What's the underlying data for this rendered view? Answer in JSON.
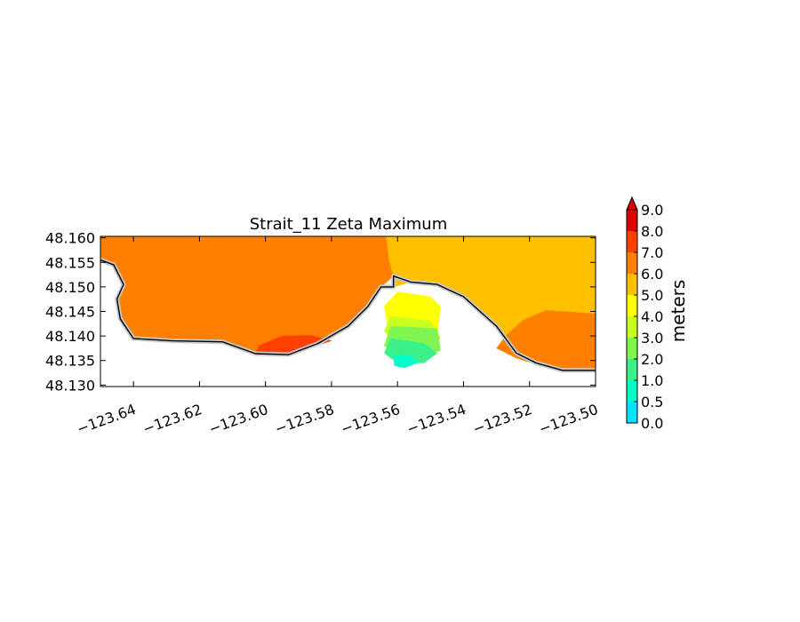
{
  "chart_data": {
    "type": "heatmap",
    "title": "Strait_11 Zeta Maximum",
    "xlabel": "",
    "ylabel": "",
    "xlim": [
      -123.65,
      -123.5
    ],
    "ylim": [
      48.1297,
      48.1603
    ],
    "x_ticks": [
      -123.64,
      -123.62,
      -123.6,
      -123.58,
      -123.56,
      -123.54,
      -123.52,
      -123.5
    ],
    "x_tick_labels": [
      "−123.64",
      "−123.62",
      "−123.60",
      "−123.58",
      "−123.56",
      "−123.54",
      "−123.52",
      "−123.50"
    ],
    "y_ticks": [
      48.13,
      48.135,
      48.14,
      48.145,
      48.15,
      48.155,
      48.16
    ],
    "y_tick_labels": [
      "48.130",
      "48.135",
      "48.140",
      "48.145",
      "48.150",
      "48.155",
      "48.160"
    ],
    "colorbar": {
      "label": "meters",
      "levels": [
        0.0,
        0.5,
        1.0,
        2.0,
        3.0,
        4.0,
        5.0,
        6.0,
        7.0,
        8.0,
        9.0
      ],
      "level_labels": [
        "0.0",
        "0.5",
        "1.0",
        "2.0",
        "3.0",
        "4.0",
        "5.0",
        "6.0",
        "7.0",
        "8.0",
        "9.0"
      ],
      "colors": [
        "#00e5ff",
        "#00ffc8",
        "#3cf08a",
        "#80f550",
        "#c8ff20",
        "#ffff00",
        "#ffc000",
        "#ff8000",
        "#ff4000",
        "#e00000"
      ],
      "extend": "max",
      "extend_color": "#e00000"
    },
    "regions": [
      {
        "name": "west-basin",
        "value_range": [
          6.0,
          7.0
        ],
        "color": "#ff8000",
        "polygon": [
          [
            -123.65,
            48.1603
          ],
          [
            -123.5634,
            48.1603
          ],
          [
            -123.5625,
            48.1555
          ],
          [
            -123.5612,
            48.1522
          ],
          [
            -123.565,
            48.15
          ],
          [
            -123.569,
            48.146
          ],
          [
            -123.575,
            48.142
          ],
          [
            -123.584,
            48.1385
          ],
          [
            -123.593,
            48.1362
          ],
          [
            -123.603,
            48.1364
          ],
          [
            -123.613,
            48.1388
          ],
          [
            -123.628,
            48.139
          ],
          [
            -123.64,
            48.1395
          ],
          [
            -123.644,
            48.1435
          ],
          [
            -123.645,
            48.1475
          ],
          [
            -123.643,
            48.1505
          ],
          [
            -123.646,
            48.1545
          ],
          [
            -123.65,
            48.1555
          ]
        ]
      },
      {
        "name": "east-basin",
        "value_range": [
          5.0,
          6.0
        ],
        "color": "#ffc000",
        "polygon": [
          [
            -123.5634,
            48.1603
          ],
          [
            -123.5,
            48.1603
          ],
          [
            -123.5,
            48.133
          ],
          [
            -123.51,
            48.133
          ],
          [
            -123.518,
            48.1345
          ],
          [
            -123.524,
            48.1365
          ],
          [
            -123.53,
            48.142
          ],
          [
            -123.54,
            48.148
          ],
          [
            -123.548,
            48.1505
          ],
          [
            -123.556,
            48.151
          ],
          [
            -123.5612,
            48.15
          ],
          [
            -123.5612,
            48.1522
          ],
          [
            -123.5625,
            48.1555
          ]
        ]
      },
      {
        "name": "east-shore-band",
        "value_range": [
          6.0,
          7.0
        ],
        "color": "#ff8000",
        "polygon": [
          [
            -123.5,
            48.1445
          ],
          [
            -123.51,
            48.145
          ],
          [
            -123.515,
            48.1452
          ],
          [
            -123.522,
            48.1432
          ],
          [
            -123.527,
            48.1402
          ],
          [
            -123.53,
            48.1375
          ],
          [
            -123.524,
            48.1355
          ],
          [
            -123.518,
            48.1342
          ],
          [
            -123.51,
            48.133
          ],
          [
            -123.5,
            48.133
          ]
        ]
      },
      {
        "name": "west-shore-patch",
        "value_range": [
          7.0,
          8.0
        ],
        "color": "#ff4000",
        "polygon": [
          [
            -123.602,
            48.138
          ],
          [
            -123.595,
            48.14
          ],
          [
            -123.586,
            48.1401
          ],
          [
            -123.58,
            48.139
          ],
          [
            -123.584,
            48.1382
          ],
          [
            -123.593,
            48.1362
          ],
          [
            -123.603,
            48.1364
          ]
        ]
      },
      {
        "name": "harbor-band-yellow",
        "value_range": [
          4.0,
          5.0
        ],
        "color": "#ffff00",
        "polygon": [
          [
            -123.56,
            48.149
          ],
          [
            -123.55,
            48.148
          ],
          [
            -123.547,
            48.146
          ],
          [
            -123.548,
            48.14
          ],
          [
            -123.556,
            48.1395
          ],
          [
            -123.563,
            48.142
          ],
          [
            -123.564,
            48.146
          ]
        ]
      },
      {
        "name": "harbor-band-lime",
        "value_range": [
          3.0,
          4.0
        ],
        "color": "#c8ff20",
        "polygon": [
          [
            -123.562,
            48.144
          ],
          [
            -123.55,
            48.143
          ],
          [
            -123.547,
            48.1395
          ],
          [
            -123.55,
            48.137
          ],
          [
            -123.56,
            48.138
          ],
          [
            -123.564,
            48.141
          ]
        ]
      },
      {
        "name": "harbor-band-green",
        "value_range": [
          2.0,
          3.0
        ],
        "color": "#80f550",
        "polygon": [
          [
            -123.562,
            48.142
          ],
          [
            -123.548,
            48.1415
          ],
          [
            -123.547,
            48.137
          ],
          [
            -123.556,
            48.1355
          ],
          [
            -123.564,
            48.138
          ]
        ]
      },
      {
        "name": "harbor-band-teal",
        "value_range": [
          1.0,
          2.0
        ],
        "color": "#3cf08a",
        "polygon": [
          [
            -123.562,
            48.1395
          ],
          [
            -123.552,
            48.1385
          ],
          [
            -123.548,
            48.1365
          ],
          [
            -123.552,
            48.1345
          ],
          [
            -123.56,
            48.1345
          ],
          [
            -123.564,
            48.1365
          ]
        ]
      },
      {
        "name": "harbor-band-cyan",
        "value_range": [
          0.0,
          1.0
        ],
        "color": "#00ffc8",
        "polygon": [
          [
            -123.561,
            48.136
          ],
          [
            -123.556,
            48.1362
          ],
          [
            -123.554,
            48.1345
          ],
          [
            -123.558,
            48.1335
          ],
          [
            -123.561,
            48.134
          ]
        ]
      }
    ],
    "coastline": [
      [
        -123.65,
        48.1555
      ],
      [
        -123.646,
        48.1545
      ],
      [
        -123.643,
        48.1505
      ],
      [
        -123.645,
        48.1475
      ],
      [
        -123.644,
        48.1435
      ],
      [
        -123.64,
        48.1395
      ],
      [
        -123.628,
        48.139
      ],
      [
        -123.613,
        48.1388
      ],
      [
        -123.603,
        48.1364
      ],
      [
        -123.593,
        48.1362
      ],
      [
        -123.584,
        48.1385
      ],
      [
        -123.575,
        48.142
      ],
      [
        -123.569,
        48.146
      ],
      [
        -123.565,
        48.15
      ],
      [
        -123.5612,
        48.15
      ],
      [
        -123.5612,
        48.1522
      ],
      [
        -123.556,
        48.151
      ],
      [
        -123.548,
        48.1505
      ],
      [
        -123.54,
        48.148
      ],
      [
        -123.53,
        48.142
      ],
      [
        -123.524,
        48.1365
      ],
      [
        -123.518,
        48.1345
      ],
      [
        -123.51,
        48.133
      ],
      [
        -123.5,
        48.133
      ]
    ]
  }
}
